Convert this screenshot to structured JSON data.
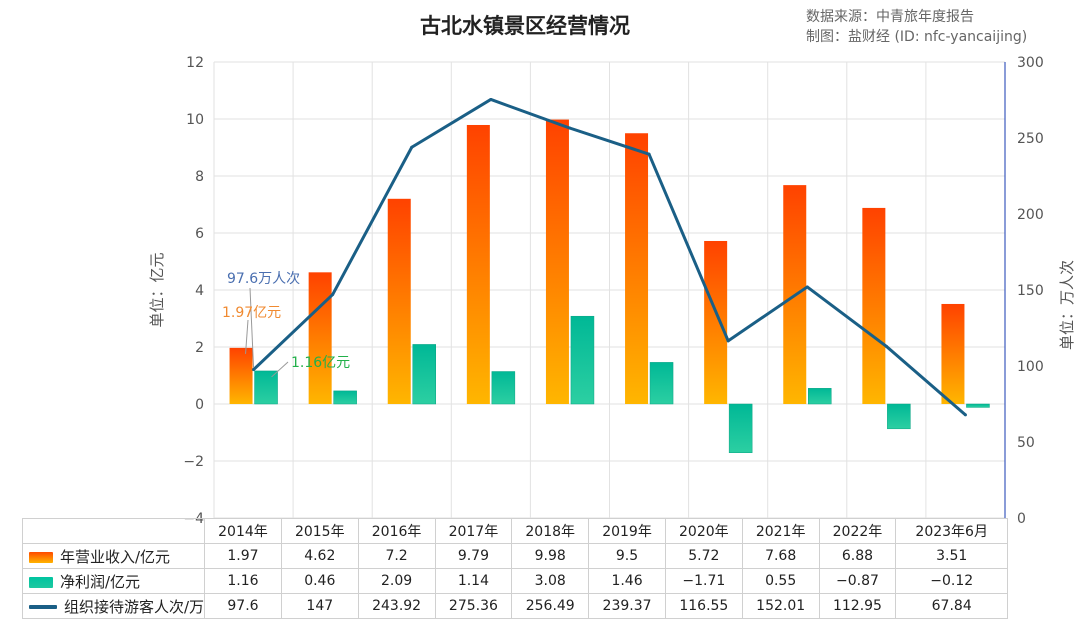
{
  "title": "古北水镇景区经营情况",
  "source_lines": [
    "数据来源：中青旅年度报告",
    "制图：盐财经 (ID: nfc-yancaijing)"
  ],
  "chart_data": {
    "type": "bar",
    "categories": [
      "2014年",
      "2015年",
      "2016年",
      "2017年",
      "2018年",
      "2019年",
      "2020年",
      "2021年",
      "2022年",
      "2023年6月"
    ],
    "series": [
      {
        "name": "年营业收入/亿元",
        "type": "bar",
        "axis": "left",
        "color": "#ff6a00",
        "values": [
          1.97,
          4.62,
          7.2,
          9.79,
          9.98,
          9.5,
          5.72,
          7.68,
          6.88,
          3.51
        ]
      },
      {
        "name": "净利润/亿元",
        "type": "bar",
        "axis": "left",
        "color": "#1ec8a0",
        "values": [
          1.16,
          0.46,
          2.09,
          1.14,
          3.08,
          1.46,
          -1.71,
          0.55,
          -0.87,
          -0.12
        ]
      },
      {
        "name": "组织接待游客人次/万",
        "type": "line",
        "axis": "right",
        "color": "#1a5f86",
        "values": [
          97.6,
          147,
          243.92,
          275.36,
          256.49,
          239.37,
          116.55,
          152.01,
          112.95,
          67.84
        ]
      }
    ],
    "table_values": [
      [
        "1.97",
        "4.62",
        "7.2",
        "9.79",
        "9.98",
        "9.5",
        "5.72",
        "7.68",
        "6.88",
        "3.51"
      ],
      [
        "1.16",
        "0.46",
        "2.09",
        "1.14",
        "3.08",
        "1.46",
        "−1.71",
        "0.55",
        "−0.87",
        "−0.12"
      ],
      [
        "97.6",
        "147",
        "243.92",
        "275.36",
        "256.49",
        "239.37",
        "116.55",
        "152.01",
        "112.95",
        "67.84"
      ]
    ],
    "y_left": {
      "label": "单位：亿元",
      "ylim": [
        -4,
        12
      ],
      "ticks": [
        -4,
        -2,
        0,
        2,
        4,
        6,
        8,
        10,
        12
      ]
    },
    "y_right": {
      "label": "单位：万人次",
      "ylim": [
        0,
        300
      ],
      "ticks": [
        0,
        50,
        100,
        150,
        200,
        250,
        300
      ]
    },
    "annotations": [
      {
        "text": "97.6万人次",
        "color": "#4a6fb0"
      },
      {
        "text": "1.97亿元",
        "color": "#f08a30"
      },
      {
        "text": "1.16亿元",
        "color": "#22b04a"
      }
    ],
    "grid": true,
    "legend": "table-bottom"
  }
}
